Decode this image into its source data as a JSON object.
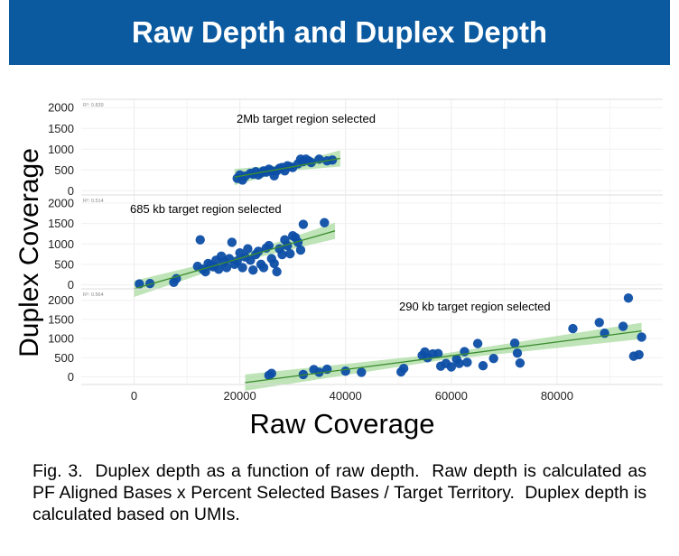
{
  "header": {
    "title": "Raw Depth and Duplex Depth"
  },
  "caption": "Fig. 3.  Duplex depth as a function of raw depth.  Raw depth is calculated as PF Aligned Bases x Percent Selected Bases / Target Territory.  Duplex depth is calculated based on UMIs.",
  "colors": {
    "banner": "#0b5aa0",
    "point": "#0d4ea6",
    "fit_line": "#3a8c2f",
    "band": "#a9dba0"
  },
  "chart_data": {
    "type": "scatter",
    "xlabel": "Raw Coverage",
    "ylabel": "Duplex Coverage",
    "xlim": [
      -10000,
      100000
    ],
    "xticks": [
      0,
      20000,
      40000,
      60000,
      80000
    ],
    "grid": true,
    "panels": [
      {
        "name": "2Mb target region selected",
        "r2_label": "R²: 0.839",
        "ylim": [
          -100,
          2200
        ],
        "yticks": [
          0,
          500,
          1000,
          1500,
          2000
        ],
        "fit": {
          "x": [
            19000,
            39000
          ],
          "y": [
            330,
            780
          ]
        },
        "points": [
          [
            19500,
            300
          ],
          [
            20000,
            380
          ],
          [
            20500,
            260
          ],
          [
            21000,
            350
          ],
          [
            22000,
            420
          ],
          [
            22500,
            400
          ],
          [
            23000,
            460
          ],
          [
            23500,
            380
          ],
          [
            24000,
            430
          ],
          [
            24500,
            480
          ],
          [
            25000,
            450
          ],
          [
            25500,
            520
          ],
          [
            26000,
            480
          ],
          [
            26500,
            360
          ],
          [
            27000,
            480
          ],
          [
            27500,
            540
          ],
          [
            28000,
            560
          ],
          [
            28500,
            480
          ],
          [
            29000,
            600
          ],
          [
            29500,
            580
          ],
          [
            30000,
            560
          ],
          [
            31000,
            650
          ],
          [
            31500,
            760
          ],
          [
            32000,
            700
          ],
          [
            32500,
            760
          ],
          [
            33000,
            720
          ],
          [
            33500,
            680
          ],
          [
            35000,
            760
          ],
          [
            36500,
            720
          ],
          [
            37500,
            740
          ]
        ]
      },
      {
        "name": "685 kb target region selected",
        "r2_label": "R²: 0.514",
        "ylim": [
          -100,
          2200
        ],
        "yticks": [
          0,
          500,
          1000,
          1500,
          2000
        ],
        "fit": {
          "x": [
            0,
            38000
          ],
          "y": [
            -100,
            1320
          ]
        },
        "points": [
          [
            1000,
            20
          ],
          [
            3000,
            30
          ],
          [
            7500,
            60
          ],
          [
            8000,
            150
          ],
          [
            12000,
            450
          ],
          [
            12500,
            1100
          ],
          [
            13000,
            380
          ],
          [
            13500,
            320
          ],
          [
            14000,
            520
          ],
          [
            14500,
            480
          ],
          [
            15000,
            440
          ],
          [
            15500,
            600
          ],
          [
            16000,
            380
          ],
          [
            16500,
            700
          ],
          [
            17000,
            560
          ],
          [
            17500,
            420
          ],
          [
            18000,
            640
          ],
          [
            18500,
            1040
          ],
          [
            19000,
            500
          ],
          [
            19500,
            580
          ],
          [
            20000,
            780
          ],
          [
            20500,
            420
          ],
          [
            21000,
            680
          ],
          [
            21500,
            880
          ],
          [
            22000,
            600
          ],
          [
            22500,
            360
          ],
          [
            23000,
            740
          ],
          [
            23500,
            820
          ],
          [
            24000,
            500
          ],
          [
            24500,
            420
          ],
          [
            25000,
            900
          ],
          [
            25500,
            960
          ],
          [
            26000,
            640
          ],
          [
            26500,
            520
          ],
          [
            27000,
            320
          ],
          [
            27500,
            880
          ],
          [
            28000,
            740
          ],
          [
            28500,
            1100
          ],
          [
            29000,
            960
          ],
          [
            29500,
            760
          ],
          [
            30000,
            1200
          ],
          [
            30500,
            1160
          ],
          [
            31000,
            1040
          ],
          [
            31500,
            850
          ],
          [
            32000,
            1480
          ],
          [
            36000,
            1520
          ]
        ]
      },
      {
        "name": "290 kb target region selected",
        "r2_label": "R²: 0.564",
        "ylim": [
          -200,
          2300
        ],
        "yticks": [
          0,
          500,
          1000,
          1500,
          2000
        ],
        "fit": {
          "x": [
            21000,
            96000
          ],
          "y": [
            -150,
            1200
          ]
        },
        "points": [
          [
            25500,
            40
          ],
          [
            26000,
            90
          ],
          [
            32000,
            60
          ],
          [
            34000,
            190
          ],
          [
            35000,
            120
          ],
          [
            36500,
            200
          ],
          [
            40000,
            150
          ],
          [
            43000,
            120
          ],
          [
            50500,
            130
          ],
          [
            51000,
            220
          ],
          [
            54500,
            560
          ],
          [
            55000,
            650
          ],
          [
            55500,
            500
          ],
          [
            56500,
            600
          ],
          [
            57500,
            610
          ],
          [
            58000,
            280
          ],
          [
            59000,
            350
          ],
          [
            60000,
            260
          ],
          [
            61000,
            460
          ],
          [
            61500,
            350
          ],
          [
            62500,
            660
          ],
          [
            63000,
            380
          ],
          [
            65000,
            870
          ],
          [
            66000,
            290
          ],
          [
            68000,
            480
          ],
          [
            72000,
            880
          ],
          [
            72500,
            620
          ],
          [
            73000,
            360
          ],
          [
            83000,
            1260
          ],
          [
            88000,
            1420
          ],
          [
            89000,
            1140
          ],
          [
            92500,
            1320
          ],
          [
            93500,
            2060
          ],
          [
            94500,
            540
          ],
          [
            95500,
            580
          ],
          [
            96000,
            1040
          ]
        ]
      }
    ]
  }
}
